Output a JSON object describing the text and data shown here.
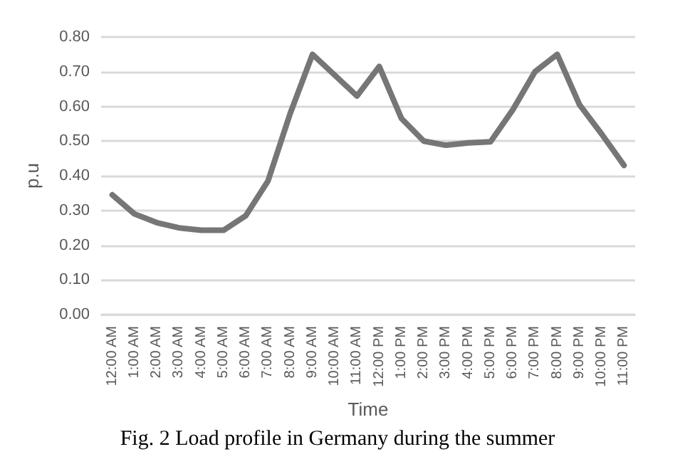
{
  "chart_data": {
    "type": "line",
    "xlabel": "Time",
    "ylabel": "p.u",
    "annotations": [
      "Fig. 2 Load profile in Germany during the summer"
    ],
    "categories": [
      "12:00 AM",
      "1:00 AM",
      "2:00 AM",
      "3:00 AM",
      "4:00 AM",
      "5:00 AM",
      "6:00 AM",
      "7:00 AM",
      "8:00 AM",
      "9:00 AM",
      "10:00 AM",
      "11:00 AM",
      "12:00 PM",
      "1:00 PM",
      "2:00 PM",
      "3:00 PM",
      "4:00 PM",
      "5:00 PM",
      "6:00 PM",
      "7:00 PM",
      "8:00 PM",
      "9:00 PM",
      "10:00 PM",
      "11:00 PM"
    ],
    "series": [
      {
        "color": "#767676",
        "values": [
          0.345,
          0.29,
          0.265,
          0.25,
          0.243,
          0.243,
          0.285,
          0.385,
          0.58,
          0.75,
          0.69,
          0.63,
          0.715,
          0.565,
          0.5,
          0.488,
          0.495,
          0.498,
          0.59,
          0.7,
          0.75,
          0.605,
          0.52,
          0.43
        ]
      }
    ],
    "ylim": [
      0,
      0.8
    ],
    "yticks": [
      {
        "value": 0,
        "label": "0.00"
      },
      {
        "value": 0.1,
        "label": "0.10"
      },
      {
        "value": 0.2,
        "label": "0.20"
      },
      {
        "value": 0.3,
        "label": "0.30"
      },
      {
        "value": 0.4,
        "label": "0.40"
      },
      {
        "value": 0.5,
        "label": "0.50"
      },
      {
        "value": 0.6,
        "label": "0.60"
      },
      {
        "value": 0.7,
        "label": "0.70"
      },
      {
        "value": 0.8,
        "label": "0.80"
      }
    ],
    "grid": "y",
    "marker": "none",
    "line_style": "solid"
  }
}
